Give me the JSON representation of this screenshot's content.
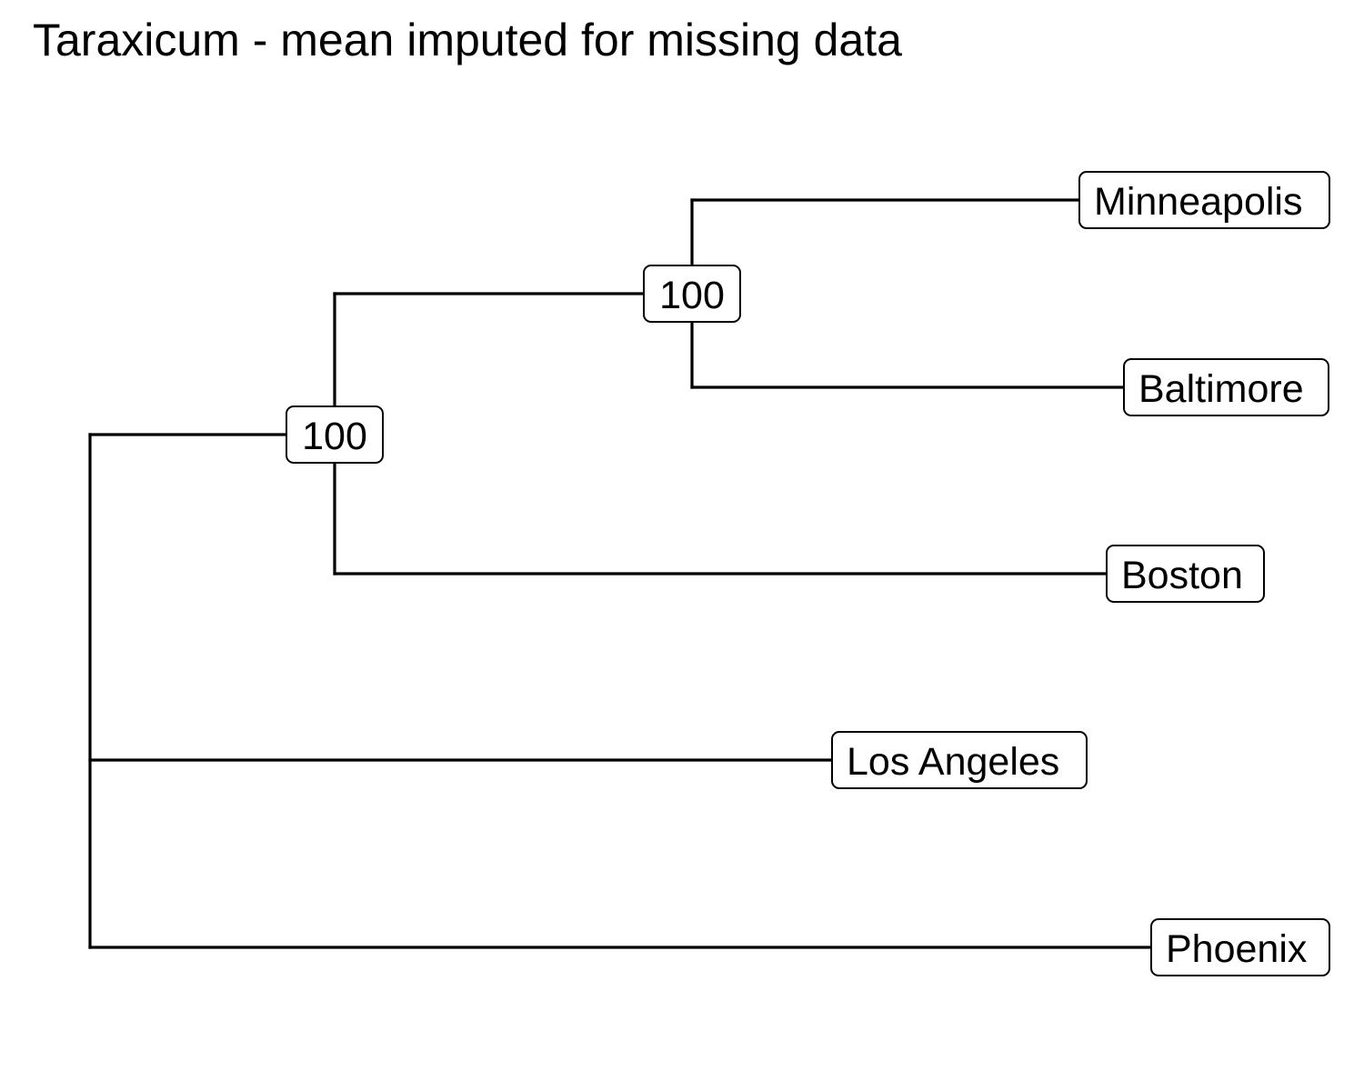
{
  "title": "Taraxicum - mean imputed for missing data",
  "colors": {
    "line": "#000000",
    "label_fill": "#ffffff",
    "background": "#ffffff"
  },
  "tree": {
    "tips": [
      "Minneapolis",
      "Baltimore",
      "Boston",
      "Los Angeles",
      "Phoenix"
    ],
    "support_values": [
      {
        "node": "Minneapolis+Baltimore",
        "value": "100"
      },
      {
        "node": "Minneapolis+Baltimore+Boston",
        "value": "100"
      }
    ]
  }
}
